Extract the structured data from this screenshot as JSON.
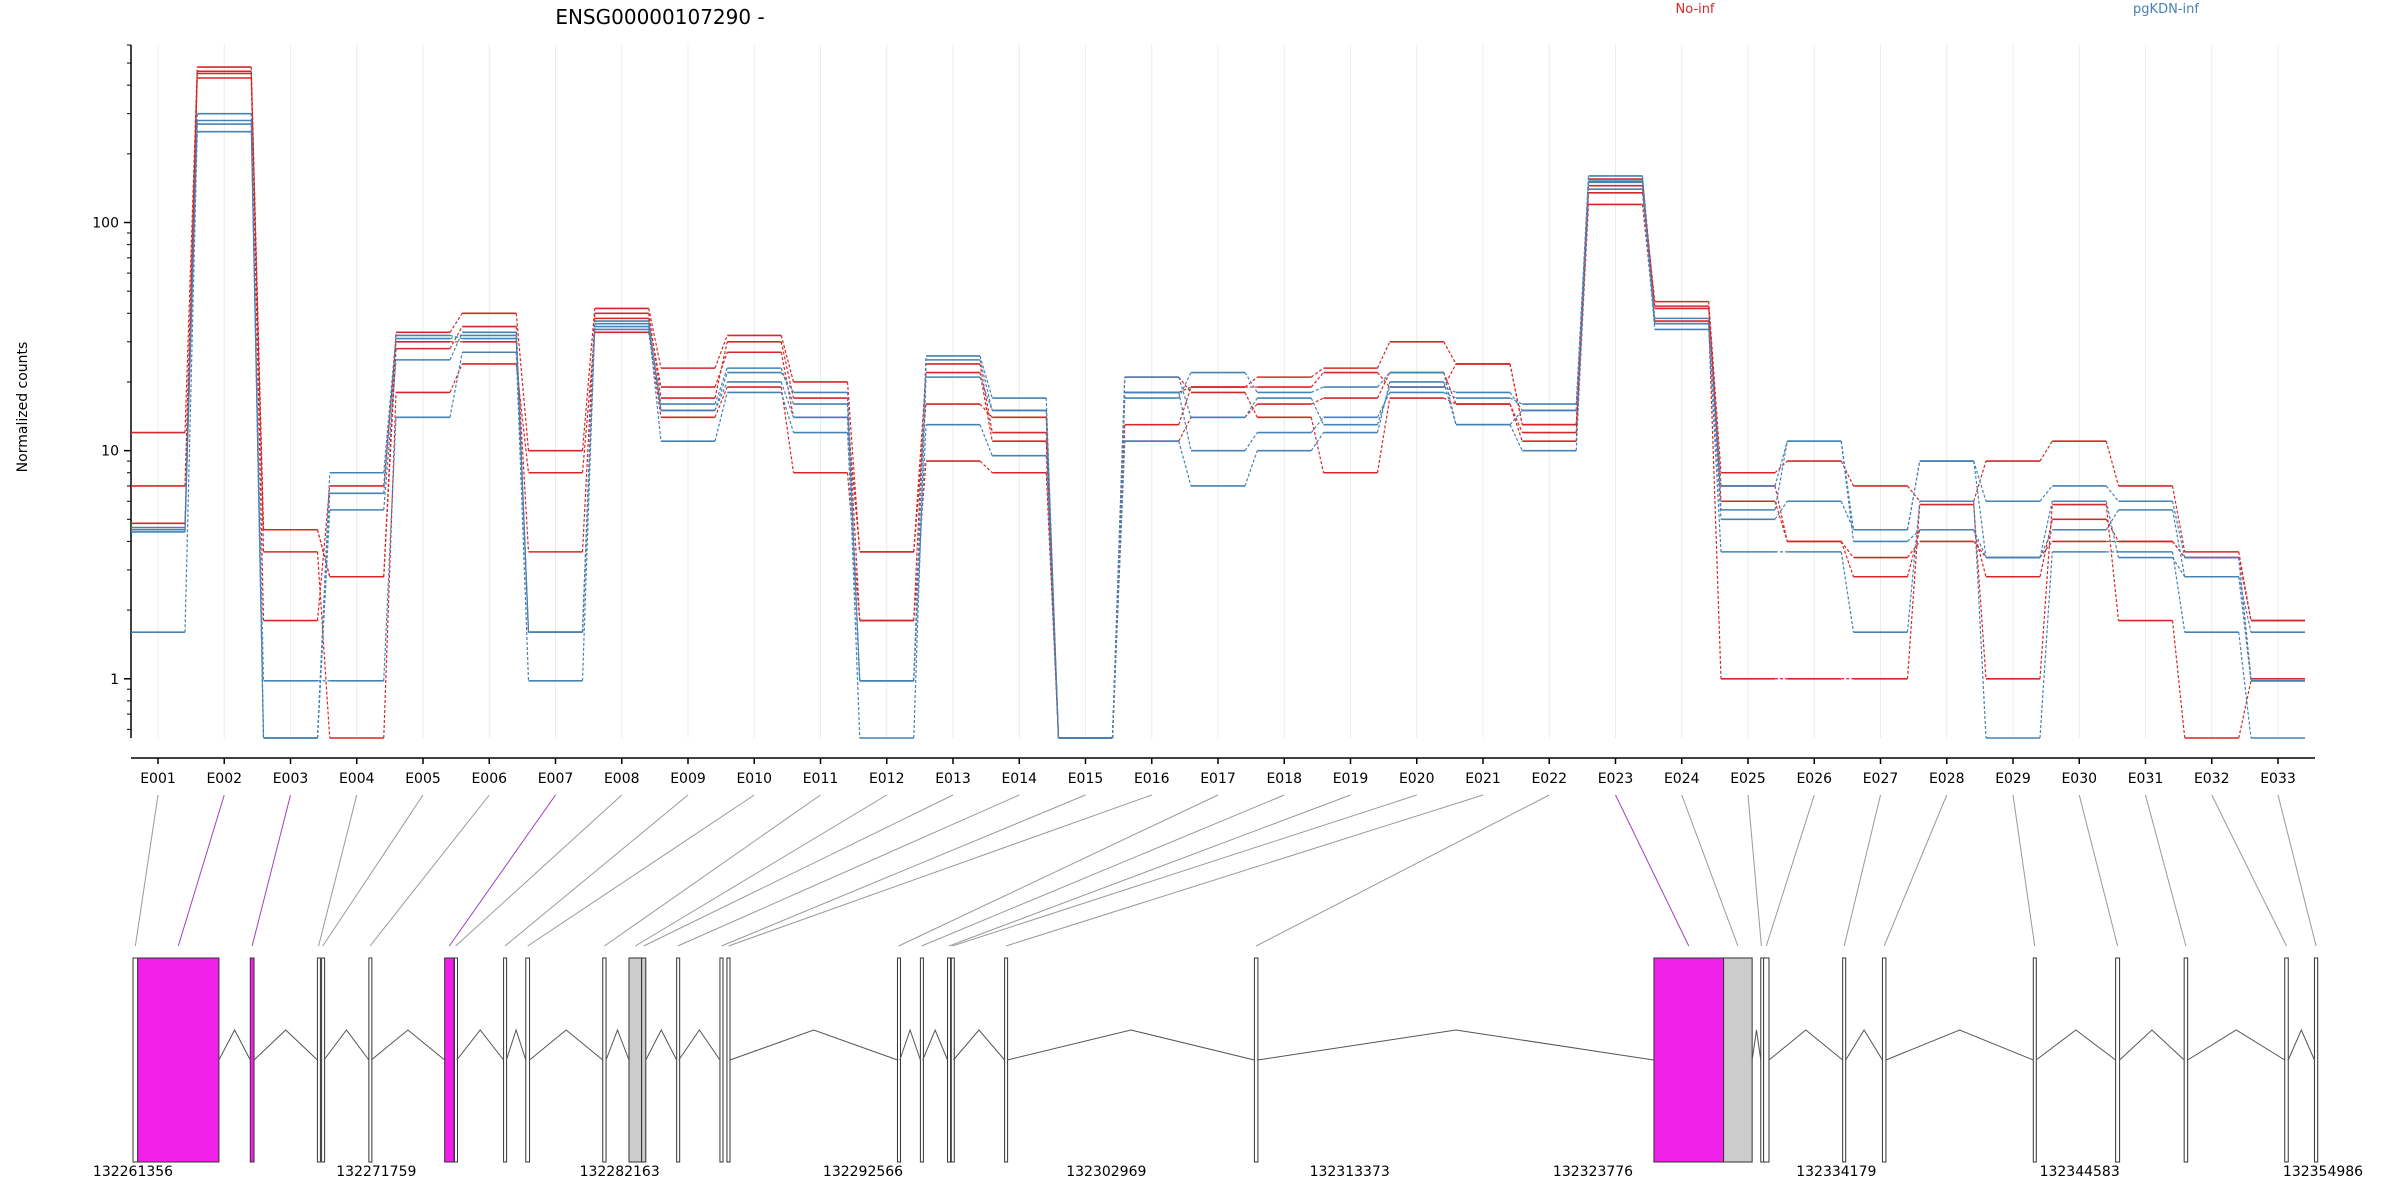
{
  "title": "ENSG00000107290 -",
  "ylabel": "Normalized counts",
  "legend": [
    {
      "label": "No-inf",
      "color": "#d62728"
    },
    {
      "label": "pgKDN-inf",
      "color": "#4682b4"
    }
  ],
  "chart_data": {
    "type": "line",
    "scale": "log",
    "ylim": [
      0.55,
      600
    ],
    "yticks": [
      1,
      10,
      100
    ],
    "yticklabels": [
      "1",
      "10",
      "100"
    ],
    "grid": "vertical",
    "legend_placement": "top",
    "categories": [
      "E001",
      "E002",
      "E003",
      "E004",
      "E005",
      "E006",
      "E007",
      "E008",
      "E009",
      "E010",
      "E011",
      "E012",
      "E013",
      "E014",
      "E015",
      "E016",
      "E017",
      "E018",
      "E019",
      "E020",
      "E021",
      "E022",
      "E023",
      "E024",
      "E025",
      "E026",
      "E027",
      "E028",
      "E029",
      "E030",
      "E031",
      "E032",
      "E033"
    ],
    "series": [
      {
        "group": "No-inf",
        "color": "#d62728",
        "values": [
          12,
          480,
          4.5,
          2.8,
          33,
          40,
          10,
          42,
          23,
          32,
          20,
          3.6,
          16,
          14,
          0.55,
          13,
          19,
          21,
          23,
          30,
          24,
          13,
          145,
          45,
          8,
          9,
          7,
          6,
          9,
          11,
          7,
          3.6,
          1.8
        ]
      },
      {
        "group": "No-inf",
        "color": "#d62728",
        "values": [
          7,
          450,
          3.6,
          0.55,
          18,
          24,
          8,
          33,
          14,
          19,
          8,
          1.8,
          9,
          8,
          0.55,
          11,
          14,
          16,
          17,
          22,
          16,
          11,
          120,
          37,
          1,
          1,
          1,
          5.8,
          1,
          5.8,
          1.8,
          0.55,
          0.98
        ]
      },
      {
        "group": "No-inf",
        "color": "#d62728",
        "values": [
          4.8,
          430,
          1.8,
          7,
          30,
          30,
          3.6,
          38,
          19,
          27,
          14,
          3.6,
          22,
          11,
          0.55,
          21,
          18,
          14,
          8,
          17,
          16,
          12,
          135,
          42,
          7,
          4,
          3.4,
          4,
          3.4,
          4,
          4,
          3.4,
          1
        ]
      },
      {
        "group": "No-inf",
        "color": "#d62728",
        "values": [
          4.5,
          460,
          4.5,
          2.8,
          28,
          35,
          1.6,
          40,
          17,
          30,
          17,
          1.8,
          24,
          12,
          0.55,
          18,
          19,
          19,
          22,
          19,
          24,
          13,
          155,
          43,
          6,
          4,
          2.8,
          4.5,
          2.8,
          5,
          4,
          3.4,
          1.8
        ]
      },
      {
        "group": "pgKDN-inf",
        "color": "#4682b4",
        "values": [
          1.6,
          250,
          0.98,
          0.98,
          14,
          27,
          0.98,
          35,
          11,
          18,
          12,
          0.98,
          13,
          9.5,
          0.55,
          11,
          7,
          10,
          12,
          20,
          13,
          10,
          140,
          34,
          3.6,
          3.6,
          1.6,
          6,
          0.55,
          3.6,
          3.6,
          1.6,
          0.55
        ]
      },
      {
        "group": "pgKDN-inf",
        "color": "#4682b4",
        "values": [
          4.4,
          300,
          0.55,
          5.5,
          25,
          33,
          1.6,
          36,
          15,
          20,
          14,
          0.55,
          21,
          15,
          0.55,
          18,
          10,
          12,
          14,
          18,
          17,
          16,
          160,
          36,
          5,
          6,
          4.5,
          9,
          3.4,
          4.5,
          5.5,
          2.8,
          1.6
        ]
      },
      {
        "group": "pgKDN-inf",
        "color": "#4682b4",
        "values": [
          4.6,
          270,
          0.55,
          8,
          32,
          31,
          1.6,
          34,
          16,
          23,
          16,
          0.98,
          26,
          17,
          0.55,
          17,
          22,
          18,
          19,
          22,
          13,
          15,
          150,
          36,
          7,
          11,
          4.5,
          9,
          6,
          7,
          6,
          3.4,
          0.98
        ]
      },
      {
        "group": "pgKDN-inf",
        "color": "#4682b4",
        "values": [
          4.5,
          280,
          0.55,
          6.5,
          31,
          32,
          1.6,
          37,
          15,
          22,
          18,
          0.98,
          25,
          15,
          0.55,
          21,
          14,
          17,
          13,
          19,
          18,
          15,
          152,
          38,
          5.5,
          11,
          4,
          4.5,
          3.4,
          6,
          3.4,
          2.8,
          0.98
        ]
      }
    ]
  },
  "exon_track": {
    "xlim": [
      132261356,
      132354986
    ],
    "tick_labels": [
      "132261356",
      "132271759",
      "132282163",
      "132292566",
      "132302969",
      "132313373",
      "132323776",
      "132334179",
      "132344583",
      "132354986"
    ],
    "tick_values": [
      132261356,
      132271759,
      132282163,
      132292566,
      132302969,
      132313373,
      132323776,
      132334179,
      132344583,
      132354986
    ],
    "exons": [
      {
        "name": "E001",
        "start": 132261356,
        "end": 132261556,
        "highlight": false
      },
      {
        "name": "E002",
        "start": 132261556,
        "end": 132265030,
        "highlight": true
      },
      {
        "name": "E003",
        "start": 132266370,
        "end": 132266530,
        "highlight": true
      },
      {
        "name": "E004",
        "start": 132269240,
        "end": 132269340,
        "highlight": false
      },
      {
        "name": "E005",
        "start": 132269420,
        "end": 132269520,
        "highlight": false
      },
      {
        "name": "E006",
        "start": 132271440,
        "end": 132271540,
        "highlight": false
      },
      {
        "name": "E007",
        "start": 132274680,
        "end": 132275080,
        "highlight": true
      },
      {
        "name": "E008",
        "start": 132275100,
        "end": 132275200,
        "highlight": false
      },
      {
        "name": "E009",
        "start": 132277200,
        "end": 132277320,
        "highlight": false
      },
      {
        "name": "E010",
        "start": 132278150,
        "end": 132278310,
        "highlight": false
      },
      {
        "name": "E011",
        "start": 132281440,
        "end": 132281580,
        "highlight": false
      },
      {
        "name": "E012",
        "start": 132282560,
        "end": 132283100,
        "highlight": false,
        "gray": true
      },
      {
        "name": "E013",
        "start": 132283100,
        "end": 132283280,
        "highlight": false,
        "gray": true
      },
      {
        "name": "E014",
        "start": 132284600,
        "end": 132284690,
        "highlight": false
      },
      {
        "name": "E015",
        "start": 132286450,
        "end": 132286580,
        "highlight": false
      },
      {
        "name": "E016",
        "start": 132286750,
        "end": 132286880,
        "highlight": false
      },
      {
        "name": "E017",
        "start": 132294040,
        "end": 132294140,
        "highlight": false
      },
      {
        "name": "E018",
        "start": 132295020,
        "end": 132295120,
        "highlight": false
      },
      {
        "name": "E019",
        "start": 132296180,
        "end": 132296310,
        "highlight": false
      },
      {
        "name": "E020",
        "start": 132296340,
        "end": 132296430,
        "highlight": false
      },
      {
        "name": "E021",
        "start": 132298620,
        "end": 132298740,
        "highlight": false
      },
      {
        "name": "E022",
        "start": 132309300,
        "end": 132309450,
        "highlight": false
      },
      {
        "name": "E023",
        "start": 132326380,
        "end": 132329360,
        "highlight": true
      },
      {
        "name": "E024",
        "start": 132329360,
        "end": 132330580,
        "highlight": false,
        "gray": true
      },
      {
        "name": "E025",
        "start": 132330950,
        "end": 132331000,
        "highlight": false
      },
      {
        "name": "E026",
        "start": 132331070,
        "end": 132331300,
        "highlight": false
      },
      {
        "name": "E027",
        "start": 132334450,
        "end": 132334580,
        "highlight": false
      },
      {
        "name": "E028",
        "start": 132336150,
        "end": 132336300,
        "highlight": false
      },
      {
        "name": "E029",
        "start": 132342600,
        "end": 132342720,
        "highlight": false
      },
      {
        "name": "E030",
        "start": 132346120,
        "end": 132346290,
        "highlight": false
      },
      {
        "name": "E031",
        "start": 132349050,
        "end": 132349200,
        "highlight": false
      },
      {
        "name": "E032",
        "start": 132353350,
        "end": 132353500,
        "highlight": false
      },
      {
        "name": "E033",
        "start": 132354620,
        "end": 132354760,
        "highlight": false
      }
    ]
  }
}
